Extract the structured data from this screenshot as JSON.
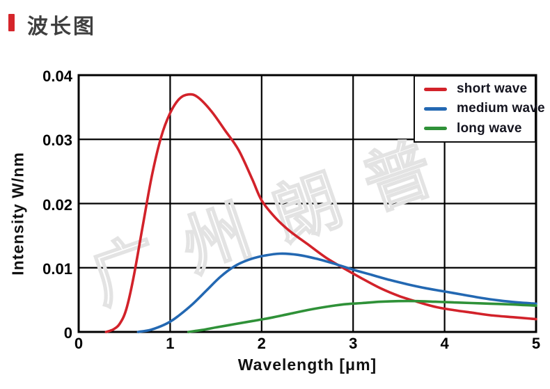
{
  "page": {
    "title": "波长图",
    "accent_color": "#d5252b",
    "background": "#ffffff"
  },
  "chart_data": {
    "type": "line",
    "title": "",
    "xlabel": "Wavelength [μm]",
    "ylabel": "Intensity W/nm",
    "xlim": [
      0,
      5
    ],
    "ylim": [
      0,
      0.04
    ],
    "xticks": [
      0,
      1,
      2,
      3,
      4,
      5
    ],
    "xtick_labels": [
      "0",
      "1",
      "2",
      "3",
      "4",
      "5"
    ],
    "yticks": [
      0,
      0.01,
      0.02,
      0.03,
      0.04
    ],
    "ytick_labels": [
      "0",
      "0.01",
      "0.02",
      "0.03",
      "0.04"
    ],
    "grid": true,
    "grid_color": "#000000",
    "frame_color": "#000000",
    "legend_position": "top-right",
    "watermark": "广州朗普",
    "watermark_color": "#e3e3e3",
    "series": [
      {
        "name": "short wave",
        "color": "#d2222a",
        "points": [
          [
            0.3,
            0
          ],
          [
            0.38,
            0.0004
          ],
          [
            0.45,
            0.0013
          ],
          [
            0.52,
            0.0035
          ],
          [
            0.6,
            0.0085
          ],
          [
            0.7,
            0.0165
          ],
          [
            0.8,
            0.0243
          ],
          [
            0.9,
            0.0303
          ],
          [
            1.0,
            0.0341
          ],
          [
            1.1,
            0.0363
          ],
          [
            1.2,
            0.037
          ],
          [
            1.3,
            0.0366
          ],
          [
            1.45,
            0.0344
          ],
          [
            1.6,
            0.0314
          ],
          [
            1.75,
            0.0283
          ],
          [
            1.9,
            0.0237
          ],
          [
            2.0,
            0.0205
          ],
          [
            2.15,
            0.0178
          ],
          [
            2.3,
            0.0158
          ],
          [
            2.5,
            0.0137
          ],
          [
            2.7,
            0.0116
          ],
          [
            2.9,
            0.0099
          ],
          [
            3.1,
            0.0083
          ],
          [
            3.3,
            0.0068
          ],
          [
            3.5,
            0.0056
          ],
          [
            3.7,
            0.0047
          ],
          [
            3.9,
            0.0039
          ],
          [
            4.1,
            0.0034
          ],
          [
            4.3,
            0.003
          ],
          [
            4.5,
            0.0026
          ],
          [
            4.75,
            0.0023
          ],
          [
            5.0,
            0.002
          ]
        ]
      },
      {
        "name": "medium wave",
        "color": "#2368b2",
        "points": [
          [
            0.65,
            0
          ],
          [
            0.78,
            0.0003
          ],
          [
            0.9,
            0.0009
          ],
          [
            1.0,
            0.0016
          ],
          [
            1.1,
            0.0026
          ],
          [
            1.25,
            0.0044
          ],
          [
            1.4,
            0.0065
          ],
          [
            1.55,
            0.0086
          ],
          [
            1.7,
            0.0102
          ],
          [
            1.85,
            0.0112
          ],
          [
            2.0,
            0.0118
          ],
          [
            2.2,
            0.0122
          ],
          [
            2.4,
            0.012
          ],
          [
            2.6,
            0.0114
          ],
          [
            2.8,
            0.0106
          ],
          [
            3.0,
            0.0097
          ],
          [
            3.2,
            0.0089
          ],
          [
            3.4,
            0.0081
          ],
          [
            3.6,
            0.0074
          ],
          [
            3.8,
            0.0068
          ],
          [
            4.0,
            0.0063
          ],
          [
            4.2,
            0.0058
          ],
          [
            4.4,
            0.0053
          ],
          [
            4.6,
            0.0049
          ],
          [
            4.8,
            0.0046
          ],
          [
            5.0,
            0.0044
          ]
        ]
      },
      {
        "name": "long wave",
        "color": "#2f9138",
        "points": [
          [
            1.2,
            0
          ],
          [
            1.35,
            0.0003
          ],
          [
            1.5,
            0.0007
          ],
          [
            1.7,
            0.0012
          ],
          [
            1.9,
            0.0017
          ],
          [
            2.1,
            0.0022
          ],
          [
            2.3,
            0.0028
          ],
          [
            2.5,
            0.0034
          ],
          [
            2.7,
            0.0039
          ],
          [
            2.9,
            0.0043
          ],
          [
            3.1,
            0.0045
          ],
          [
            3.3,
            0.0047
          ],
          [
            3.5,
            0.0048
          ],
          [
            3.7,
            0.0048
          ],
          [
            3.9,
            0.0047
          ],
          [
            4.1,
            0.0046
          ],
          [
            4.3,
            0.0045
          ],
          [
            4.5,
            0.0044
          ],
          [
            4.7,
            0.0043
          ],
          [
            4.85,
            0.0042
          ],
          [
            5.0,
            0.0041
          ]
        ]
      }
    ]
  }
}
